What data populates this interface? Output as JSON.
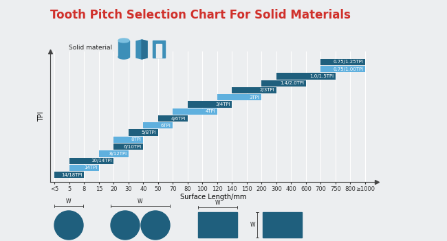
{
  "chart_data": {
    "type": "range_bar",
    "orientation": "horizontal",
    "title": "Tooth Pitch Selection Chart For Solid Materials",
    "x_label": "Surface Length/mm",
    "y_label": "TPI",
    "categories": [
      "<5",
      "5",
      "8",
      "15",
      "20",
      "30",
      "40",
      "50",
      "70",
      "80",
      "100",
      "120",
      "140",
      "150",
      "200",
      "300",
      "400",
      "600",
      "700",
      "750",
      "800",
      "≥1000"
    ],
    "bands": [
      {
        "label": "14/18TPI",
        "from": "<5",
        "to": "8",
        "color": "#1f5f7d"
      },
      {
        "label": "14TPI",
        "from": "5",
        "to": "15",
        "color": "#5fb0de"
      },
      {
        "label": "10/14TPI",
        "from": "5",
        "to": "20",
        "color": "#1f5f7d"
      },
      {
        "label": "8/12TPI",
        "from": "15",
        "to": "30",
        "color": "#5fb0de"
      },
      {
        "label": "6/10TPI",
        "from": "20",
        "to": "40",
        "color": "#1f5f7d"
      },
      {
        "label": "8TPI",
        "from": "20",
        "to": "40",
        "color": "#5fb0de"
      },
      {
        "label": "5/8TPI",
        "from": "30",
        "to": "50",
        "color": "#1f5f7d"
      },
      {
        "label": "6TPI",
        "from": "40",
        "to": "70",
        "color": "#5fb0de"
      },
      {
        "label": "4/6TPI",
        "from": "50",
        "to": "80",
        "color": "#1f5f7d"
      },
      {
        "label": "4TPI",
        "from": "70",
        "to": "120",
        "color": "#5fb0de"
      },
      {
        "label": "3/4TPI",
        "from": "80",
        "to": "140",
        "color": "#1f5f7d"
      },
      {
        "label": "3TPI",
        "from": "120",
        "to": "200",
        "color": "#5fb0de"
      },
      {
        "label": "2/3TPI",
        "from": "140",
        "to": "300",
        "color": "#1f5f7d"
      },
      {
        "label": "1.4/2.0TPI",
        "from": "200",
        "to": "600",
        "color": "#1f5f7d"
      },
      {
        "label": "1.0/1.5TPI",
        "from": "300",
        "to": "750",
        "color": "#1f5f7d"
      },
      {
        "label": "0.75/1.00TPI",
        "from": "700",
        "to": "≥1000",
        "color": "#5fb0de"
      },
      {
        "label": "0.75/1.25TPI",
        "from": "700",
        "to": "≥1000",
        "color": "#1f5f7d"
      }
    ],
    "grid": true,
    "tick_labels": "x",
    "annotations": {
      "material": "Solid material",
      "dimensions": [
        "W",
        "W",
        "W",
        "W"
      ]
    }
  }
}
